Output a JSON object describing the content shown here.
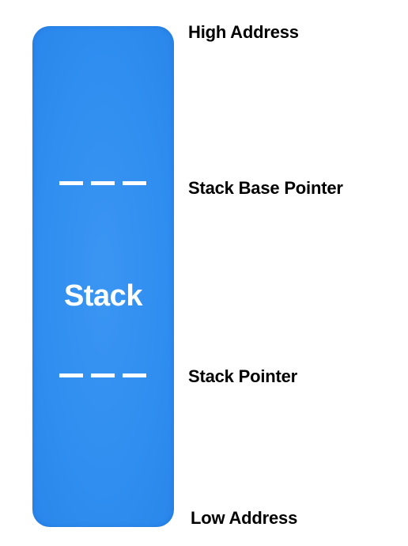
{
  "diagram": {
    "block_label": "Stack",
    "block_color": "#2f8ef0",
    "labels": {
      "high_address": "High Address",
      "stack_base_pointer": "Stack Base Pointer",
      "stack_pointer": "Stack Pointer",
      "low_address": "Low Address"
    }
  }
}
